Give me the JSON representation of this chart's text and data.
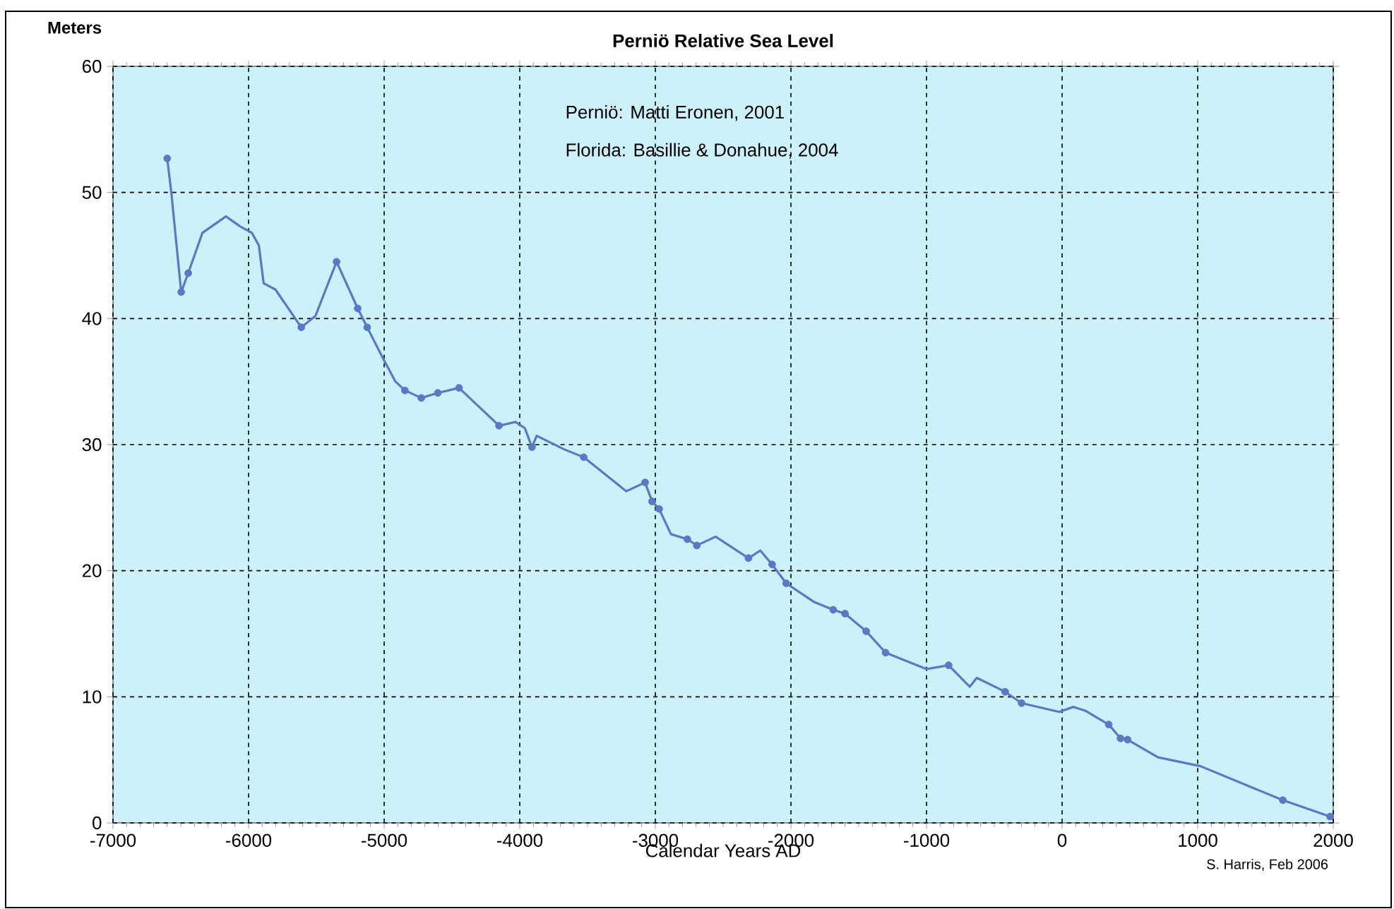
{
  "chart_data": {
    "type": "line",
    "title": "Perniö Relative Sea Level",
    "ylabel": "Meters",
    "xlabel": "Calendar Years AD",
    "annotations": [
      "Perniö: Matti Eronen, 2001",
      "Florida: Basillie & Donahue, 2004",
      "S. Harris, Feb 2006"
    ],
    "xlim": [
      -7000,
      2000
    ],
    "ylim": [
      0,
      60
    ],
    "xticks": [
      -7000,
      -6000,
      -5000,
      -4000,
      -3000,
      -2000,
      -1000,
      0,
      1000,
      2000
    ],
    "yticks": [
      0,
      10,
      20,
      30,
      40,
      50,
      60
    ],
    "grid": true,
    "line_style": "solid",
    "series": [
      {
        "type": "line",
        "color": "#5b78c4",
        "marker": "none",
        "x": [
          -6600,
          -6570,
          -6497,
          -6445,
          -6340,
          -6167,
          -6062,
          -5976,
          -5924,
          -5889,
          -5802,
          -5611,
          -5507,
          -5351,
          -5195,
          -5125,
          -5021,
          -4917,
          -4847,
          -4726,
          -4604,
          -4448,
          -4153,
          -4031,
          -3962,
          -3910,
          -3875,
          -3667,
          -3528,
          -3215,
          -3076,
          -3024,
          -2972,
          -2885,
          -2764,
          -2694,
          -2555,
          -2313,
          -2226,
          -2139,
          -2035,
          -1826,
          -1688,
          -1601,
          -1445,
          -1302,
          -1000,
          -837,
          -681,
          -629,
          -420,
          -299,
          -21,
          83,
          170,
          344,
          431,
          483,
          708,
          1021,
          1628,
          1976
        ],
        "values": [
          52.7,
          50,
          42.1,
          43.6,
          46.8,
          48.1,
          47.3,
          46.8,
          45.8,
          42.8,
          42.3,
          39.3,
          40.2,
          44.5,
          40.8,
          39.3,
          37.1,
          35.0,
          34.3,
          33.7,
          34.1,
          34.5,
          31.5,
          31.8,
          31.3,
          29.8,
          30.7,
          29.6,
          29.0,
          26.3,
          27.0,
          25.5,
          24.9,
          22.9,
          22.5,
          22.0,
          22.7,
          21.0,
          21.6,
          20.5,
          19.0,
          17.5,
          16.9,
          16.6,
          15.2,
          13.5,
          12.2,
          12.5,
          10.8,
          11.5,
          10.4,
          9.5,
          8.8,
          9.2,
          8.9,
          7.8,
          6.7,
          6.6,
          5.2,
          4.5,
          1.8,
          0.5
        ]
      },
      {
        "type": "scatter",
        "color": "#5b78c4",
        "marker": "circle",
        "x": [
          -6600,
          -6497,
          -6445,
          -5611,
          -5351,
          -5195,
          -5125,
          -4847,
          -4726,
          -4604,
          -4448,
          -4153,
          -3910,
          -3528,
          -3076,
          -3024,
          -2972,
          -2764,
          -2694,
          -2313,
          -2139,
          -2035,
          -1688,
          -1601,
          -1445,
          -1302,
          -837,
          -420,
          -299,
          344,
          431,
          483,
          1628,
          1976
        ],
        "values": [
          52.7,
          42.1,
          43.6,
          39.3,
          44.5,
          40.8,
          39.3,
          34.3,
          33.7,
          34.1,
          34.5,
          31.5,
          29.8,
          29.0,
          27.0,
          25.5,
          24.9,
          22.5,
          22.0,
          21.0,
          20.5,
          19.0,
          16.9,
          16.6,
          15.2,
          13.5,
          12.5,
          10.4,
          9.5,
          7.8,
          6.7,
          6.6,
          1.8,
          0.5
        ]
      }
    ]
  }
}
